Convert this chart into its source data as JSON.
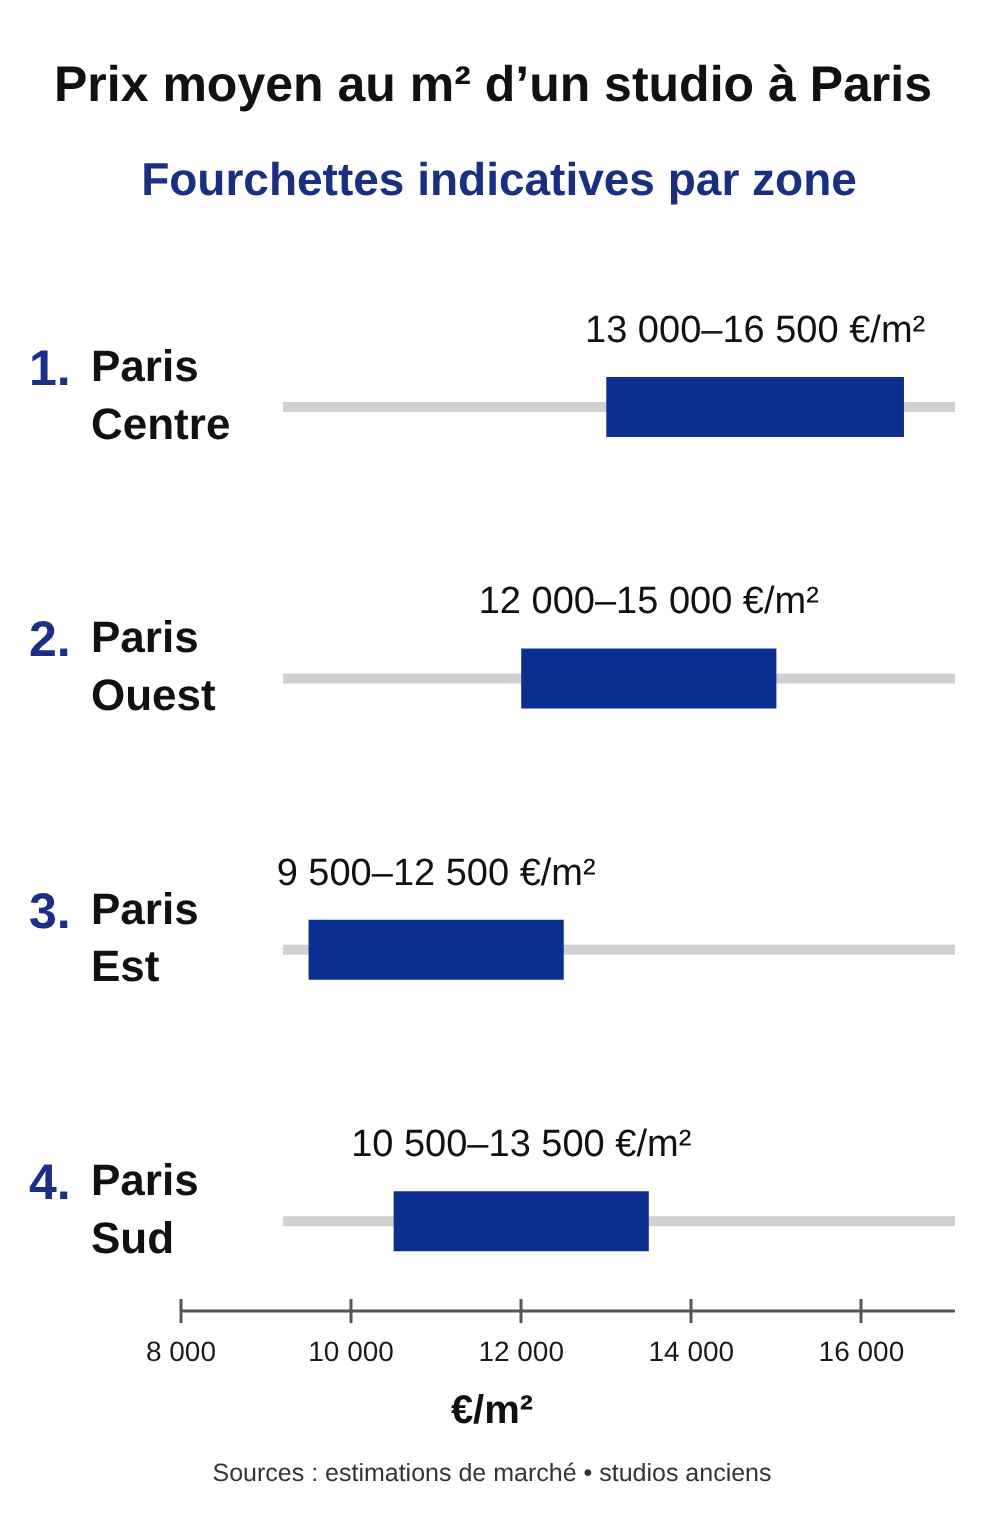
{
  "chart_data": {
    "type": "bar",
    "orientation": "horizontal",
    "title": "Prix moyen au m² d’un studio à Paris",
    "subtitle": "Fourchettes indicatives par zone",
    "xlabel": "€/m²",
    "categories": [
      "1. Paris Centre",
      "2. Paris Ouest",
      "3. Paris Est",
      "4. Paris Sud"
    ],
    "series": [
      {
        "color": "#d0d0d0",
        "base": [
          9200,
          9200,
          9200,
          9200
        ],
        "values": [
          7900,
          7900,
          7900,
          7900
        ]
      },
      {
        "color": "#0a2f8f",
        "base": [
          13000,
          12000,
          9500,
          10500
        ],
        "values": [
          3500,
          3000,
          3000,
          3000
        ]
      }
    ],
    "xlim": [
      8000,
      17100
    ],
    "xticks": [
      {
        "value": 8000,
        "label": "8 000"
      },
      {
        "value": 10000,
        "label": "10 000"
      },
      {
        "value": 12000,
        "label": "12 000"
      },
      {
        "value": 14000,
        "label": "14 000"
      },
      {
        "value": 16000,
        "label": "16 000"
      }
    ],
    "annotations": [
      {
        "text": "13 000–16 500 €/m²",
        "x": 14750,
        "y": "1. Paris Centre"
      },
      {
        "text": "12 000–15 000 €/m²",
        "x": 13500,
        "y": "2. Paris Ouest"
      },
      {
        "text": "9 500–12 500 €/m²",
        "x": 11000,
        "y": "3. Paris Est"
      },
      {
        "text": "10 500–13 500 €/m²",
        "x": 12000,
        "y": "4. Paris Sud"
      },
      "Sources : estimations de marché • studios anciens"
    ]
  }
}
